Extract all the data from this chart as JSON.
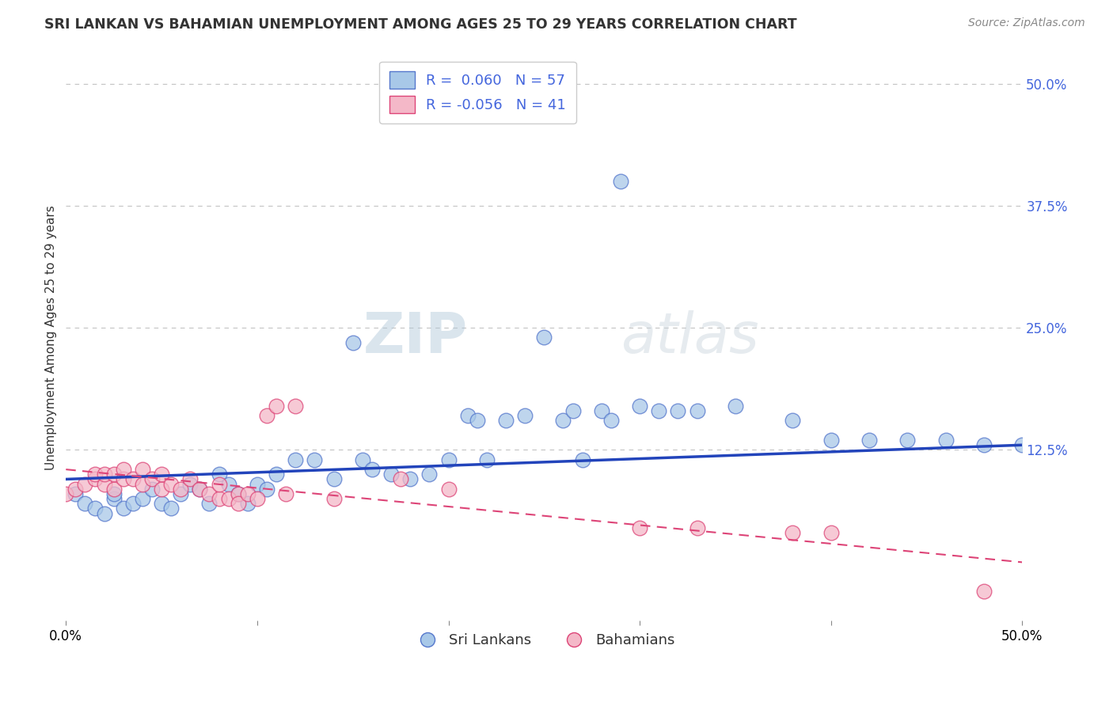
{
  "title": "SRI LANKAN VS BAHAMIAN UNEMPLOYMENT AMONG AGES 25 TO 29 YEARS CORRELATION CHART",
  "source": "Source: ZipAtlas.com",
  "ylabel": "Unemployment Among Ages 25 to 29 years",
  "xlim": [
    0.0,
    0.5
  ],
  "ylim": [
    -0.05,
    0.53
  ],
  "ytick_vals": [
    0.125,
    0.25,
    0.375,
    0.5
  ],
  "ytick_labels": [
    "12.5%",
    "25.0%",
    "37.5%",
    "50.0%"
  ],
  "xticks": [
    0.0,
    0.1,
    0.2,
    0.3,
    0.4,
    0.5
  ],
  "xtick_labels": [
    "0.0%",
    "",
    "",
    "",
    "",
    "50.0%"
  ],
  "sri_lanka_R": 0.06,
  "sri_lanka_N": 57,
  "bahamian_R": -0.056,
  "bahamian_N": 41,
  "sri_lanka_color": "#a8c8e8",
  "bahamian_color": "#f4b8c8",
  "sri_lanka_edge_color": "#5577cc",
  "bahamian_edge_color": "#dd4477",
  "sri_lanka_line_color": "#2244bb",
  "bahamian_line_color": "#dd4477",
  "legend_blue_color": "#4466dd",
  "background_color": "#ffffff",
  "sri_lanka_x": [
    0.005,
    0.01,
    0.015,
    0.02,
    0.025,
    0.025,
    0.03,
    0.035,
    0.04,
    0.045,
    0.05,
    0.055,
    0.06,
    0.065,
    0.07,
    0.075,
    0.08,
    0.085,
    0.09,
    0.095,
    0.1,
    0.105,
    0.11,
    0.12,
    0.13,
    0.14,
    0.15,
    0.155,
    0.16,
    0.17,
    0.18,
    0.19,
    0.2,
    0.21,
    0.215,
    0.22,
    0.23,
    0.24,
    0.25,
    0.26,
    0.265,
    0.27,
    0.28,
    0.285,
    0.29,
    0.3,
    0.31,
    0.32,
    0.33,
    0.35,
    0.38,
    0.4,
    0.42,
    0.44,
    0.46,
    0.48,
    0.5
  ],
  "sri_lanka_y": [
    0.08,
    0.07,
    0.065,
    0.06,
    0.075,
    0.08,
    0.065,
    0.07,
    0.075,
    0.085,
    0.07,
    0.065,
    0.08,
    0.09,
    0.085,
    0.07,
    0.1,
    0.09,
    0.08,
    0.07,
    0.09,
    0.085,
    0.1,
    0.115,
    0.115,
    0.095,
    0.235,
    0.115,
    0.105,
    0.1,
    0.095,
    0.1,
    0.115,
    0.16,
    0.155,
    0.115,
    0.155,
    0.16,
    0.24,
    0.155,
    0.165,
    0.115,
    0.165,
    0.155,
    0.4,
    0.17,
    0.165,
    0.165,
    0.165,
    0.17,
    0.155,
    0.135,
    0.135,
    0.135,
    0.135,
    0.13,
    0.13
  ],
  "bahamian_x": [
    0.0,
    0.005,
    0.01,
    0.015,
    0.015,
    0.02,
    0.02,
    0.025,
    0.025,
    0.03,
    0.03,
    0.035,
    0.04,
    0.04,
    0.045,
    0.05,
    0.05,
    0.055,
    0.06,
    0.065,
    0.07,
    0.075,
    0.08,
    0.08,
    0.085,
    0.09,
    0.09,
    0.095,
    0.1,
    0.105,
    0.11,
    0.115,
    0.12,
    0.14,
    0.175,
    0.2,
    0.3,
    0.33,
    0.38,
    0.4,
    0.48
  ],
  "bahamian_y": [
    0.08,
    0.085,
    0.09,
    0.095,
    0.1,
    0.09,
    0.1,
    0.085,
    0.1,
    0.095,
    0.105,
    0.095,
    0.09,
    0.105,
    0.095,
    0.085,
    0.1,
    0.09,
    0.085,
    0.095,
    0.085,
    0.08,
    0.075,
    0.09,
    0.075,
    0.08,
    0.07,
    0.08,
    0.075,
    0.16,
    0.17,
    0.08,
    0.17,
    0.075,
    0.095,
    0.085,
    0.045,
    0.045,
    0.04,
    0.04,
    -0.02
  ],
  "sl_line_x0": 0.0,
  "sl_line_y0": 0.095,
  "sl_line_x1": 0.5,
  "sl_line_y1": 0.13,
  "bah_line_x0": 0.0,
  "bah_line_y0": 0.105,
  "bah_line_x1": 0.5,
  "bah_line_y1": 0.01
}
